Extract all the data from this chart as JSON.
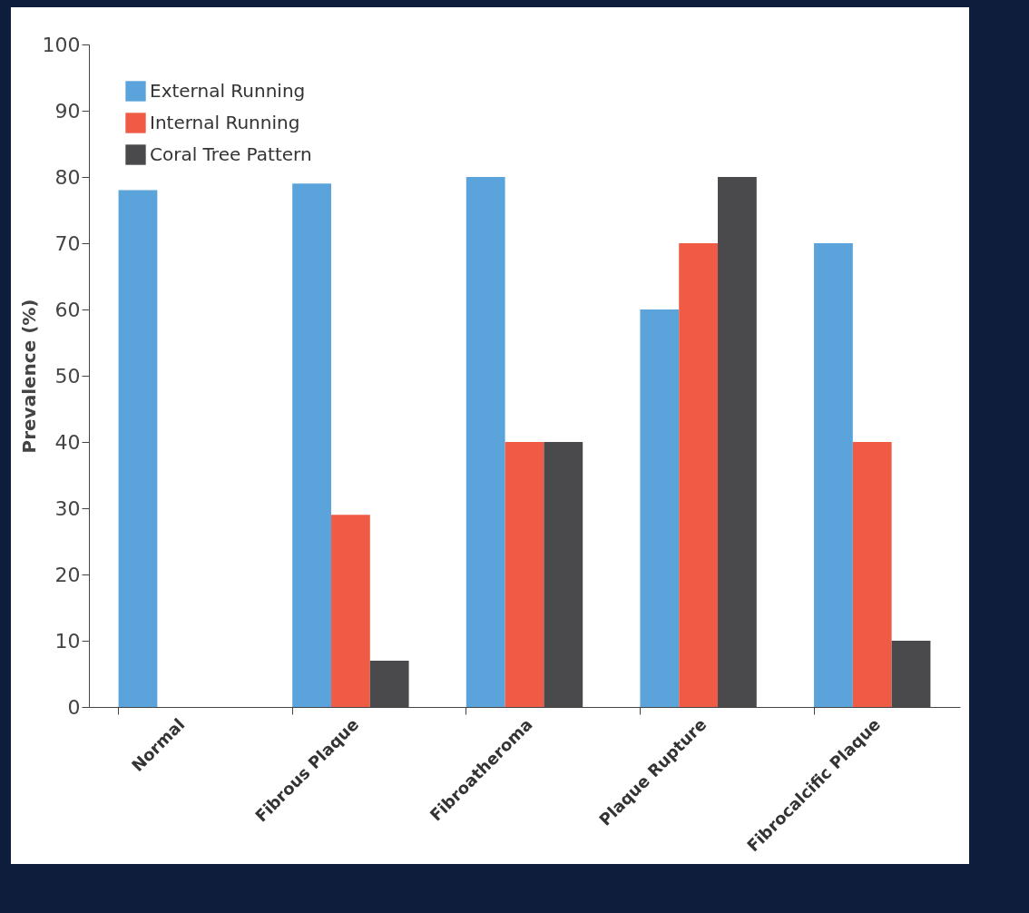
{
  "chart_data": {
    "type": "bar",
    "ylabel": "Prevalence (%)",
    "categories": [
      "Normal",
      "Fibrous Plaque",
      "Fibroatheroma",
      "Plaque Rupture",
      "Fibrocalcific Plaque"
    ],
    "series": [
      {
        "name": "External Running",
        "color": "#5ba4db",
        "values": [
          78,
          79,
          80,
          60,
          70
        ]
      },
      {
        "name": "Internal Running",
        "color": "#f05b46",
        "values": [
          0,
          29,
          40,
          70,
          40
        ]
      },
      {
        "name": "Coral Tree Pattern",
        "color": "#4a4a4c",
        "values": [
          0,
          7,
          40,
          80,
          10
        ]
      }
    ],
    "ylim": [
      0,
      100
    ],
    "yticks": [
      0,
      10,
      20,
      30,
      40,
      50,
      60,
      70,
      80,
      90,
      100
    ],
    "grid": false,
    "legend": "top left"
  }
}
